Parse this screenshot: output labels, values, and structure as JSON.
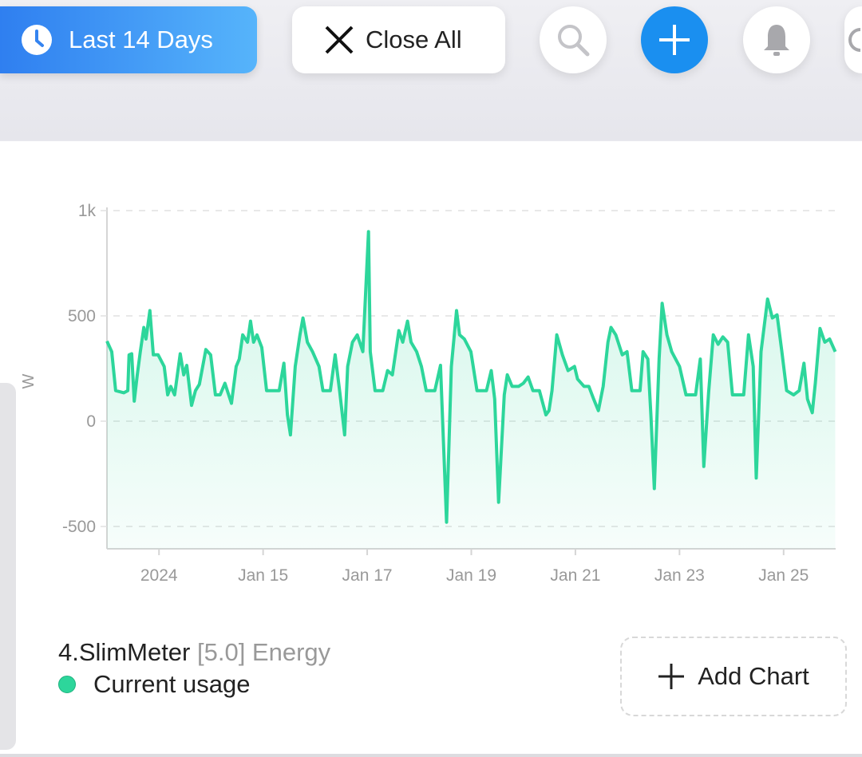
{
  "toolbar": {
    "range_label": "Last 14 Days",
    "close_all_label": "Close All"
  },
  "panel": {
    "device": "4.SlimMeter",
    "meta": "[5.0] Energy",
    "add_chart_label": "Add Chart"
  },
  "colors": {
    "accent": "#1a8ff0",
    "series": "#2dd69b"
  },
  "chart_data": {
    "type": "area",
    "title": "",
    "xlabel": "",
    "ylabel": "W",
    "x_unit": "hours since Jan 13 12:00",
    "xlim": [
      0,
      168
    ],
    "ylim": [
      -606,
      1000
    ],
    "grid": true,
    "y_ticks": [
      {
        "value": 1000,
        "label": "1k"
      },
      {
        "value": 500,
        "label": "500"
      },
      {
        "value": 0,
        "label": "0"
      },
      {
        "value": -500,
        "label": "-500"
      }
    ],
    "x_ticks": [
      {
        "value": 12,
        "label": "2024"
      },
      {
        "value": 36,
        "label": "Jan 15"
      },
      {
        "value": 60,
        "label": "Jan 17"
      },
      {
        "value": 84,
        "label": "Jan 19"
      },
      {
        "value": 108,
        "label": "Jan 21"
      },
      {
        "value": 132,
        "label": "Jan 23"
      },
      {
        "value": 156,
        "label": "Jan 25"
      }
    ],
    "series": [
      {
        "name": "Current usage",
        "points": [
          [
            0,
            380
          ],
          [
            1.1,
            330
          ],
          [
            2.0,
            145
          ],
          [
            3.9,
            135
          ],
          [
            4.8,
            145
          ],
          [
            5.1,
            315
          ],
          [
            5.7,
            320
          ],
          [
            6.3,
            95
          ],
          [
            7.0,
            220
          ],
          [
            7.7,
            330
          ],
          [
            8.5,
            445
          ],
          [
            9.0,
            390
          ],
          [
            9.9,
            525
          ],
          [
            10.7,
            315
          ],
          [
            11.8,
            315
          ],
          [
            13.2,
            260
          ],
          [
            14.0,
            125
          ],
          [
            14.7,
            165
          ],
          [
            15.6,
            125
          ],
          [
            16.9,
            320
          ],
          [
            17.7,
            220
          ],
          [
            18.4,
            265
          ],
          [
            19.5,
            75
          ],
          [
            20.4,
            145
          ],
          [
            21.3,
            175
          ],
          [
            22.8,
            340
          ],
          [
            23.9,
            315
          ],
          [
            25.0,
            125
          ],
          [
            26.1,
            125
          ],
          [
            27.2,
            180
          ],
          [
            28.7,
            85
          ],
          [
            29.8,
            260
          ],
          [
            30.5,
            295
          ],
          [
            31.3,
            410
          ],
          [
            32.4,
            375
          ],
          [
            33.1,
            475
          ],
          [
            33.8,
            375
          ],
          [
            34.6,
            410
          ],
          [
            35.7,
            350
          ],
          [
            36.8,
            145
          ],
          [
            37.9,
            145
          ],
          [
            39.7,
            145
          ],
          [
            40.8,
            275
          ],
          [
            41.6,
            30
          ],
          [
            42.3,
            -65
          ],
          [
            43.4,
            260
          ],
          [
            44.5,
            410
          ],
          [
            45.2,
            490
          ],
          [
            46.2,
            375
          ],
          [
            47.4,
            330
          ],
          [
            48.9,
            260
          ],
          [
            49.8,
            145
          ],
          [
            51.5,
            145
          ],
          [
            52.6,
            315
          ],
          [
            53.7,
            135
          ],
          [
            54.8,
            -65
          ],
          [
            55.5,
            260
          ],
          [
            56.6,
            375
          ],
          [
            57.7,
            410
          ],
          [
            59.0,
            330
          ],
          [
            60.3,
            900
          ],
          [
            60.7,
            330
          ],
          [
            61.8,
            145
          ],
          [
            63.6,
            145
          ],
          [
            64.7,
            240
          ],
          [
            65.8,
            220
          ],
          [
            67.3,
            430
          ],
          [
            68.2,
            375
          ],
          [
            69.3,
            475
          ],
          [
            70.1,
            375
          ],
          [
            71.4,
            330
          ],
          [
            72.5,
            260
          ],
          [
            73.6,
            145
          ],
          [
            75.6,
            145
          ],
          [
            76.9,
            265
          ],
          [
            78.3,
            -480
          ],
          [
            79.4,
            260
          ],
          [
            80.6,
            525
          ],
          [
            81.3,
            410
          ],
          [
            82.4,
            390
          ],
          [
            83.9,
            330
          ],
          [
            85.3,
            145
          ],
          [
            87.5,
            145
          ],
          [
            88.6,
            240
          ],
          [
            89.4,
            105
          ],
          [
            90.3,
            -385
          ],
          [
            91.6,
            125
          ],
          [
            92.3,
            220
          ],
          [
            93.4,
            165
          ],
          [
            94.9,
            165
          ],
          [
            96.0,
            180
          ],
          [
            97.1,
            210
          ],
          [
            98.2,
            145
          ],
          [
            99.7,
            145
          ],
          [
            101.2,
            30
          ],
          [
            101.9,
            50
          ],
          [
            102.6,
            145
          ],
          [
            103.7,
            410
          ],
          [
            105.0,
            315
          ],
          [
            106.3,
            240
          ],
          [
            107.8,
            260
          ],
          [
            108.5,
            200
          ],
          [
            110.0,
            165
          ],
          [
            111.1,
            165
          ],
          [
            112.2,
            105
          ],
          [
            113.3,
            50
          ],
          [
            114.4,
            165
          ],
          [
            115.5,
            375
          ],
          [
            116.2,
            445
          ],
          [
            117.3,
            410
          ],
          [
            118.8,
            315
          ],
          [
            119.9,
            330
          ],
          [
            121.0,
            145
          ],
          [
            122.9,
            145
          ],
          [
            123.6,
            330
          ],
          [
            124.7,
            295
          ],
          [
            125.4,
            30
          ],
          [
            126.2,
            -320
          ],
          [
            127.3,
            295
          ],
          [
            128.0,
            560
          ],
          [
            129.1,
            410
          ],
          [
            130.2,
            330
          ],
          [
            132.0,
            260
          ],
          [
            133.5,
            125
          ],
          [
            135.7,
            125
          ],
          [
            136.8,
            295
          ],
          [
            137.6,
            -215
          ],
          [
            138.7,
            135
          ],
          [
            139.8,
            410
          ],
          [
            140.9,
            365
          ],
          [
            142.0,
            400
          ],
          [
            143.1,
            375
          ],
          [
            144.2,
            125
          ],
          [
            146.8,
            125
          ],
          [
            147.9,
            410
          ],
          [
            149.0,
            260
          ],
          [
            149.7,
            -270
          ],
          [
            150.8,
            330
          ],
          [
            152.3,
            580
          ],
          [
            153.4,
            490
          ],
          [
            154.5,
            505
          ],
          [
            155.6,
            330
          ],
          [
            156.7,
            145
          ],
          [
            158.3,
            125
          ],
          [
            159.6,
            145
          ],
          [
            160.7,
            275
          ],
          [
            161.5,
            105
          ],
          [
            162.6,
            40
          ],
          [
            163.3,
            180
          ],
          [
            164.4,
            440
          ],
          [
            165.5,
            375
          ],
          [
            166.6,
            390
          ],
          [
            167.9,
            330
          ]
        ]
      }
    ]
  }
}
